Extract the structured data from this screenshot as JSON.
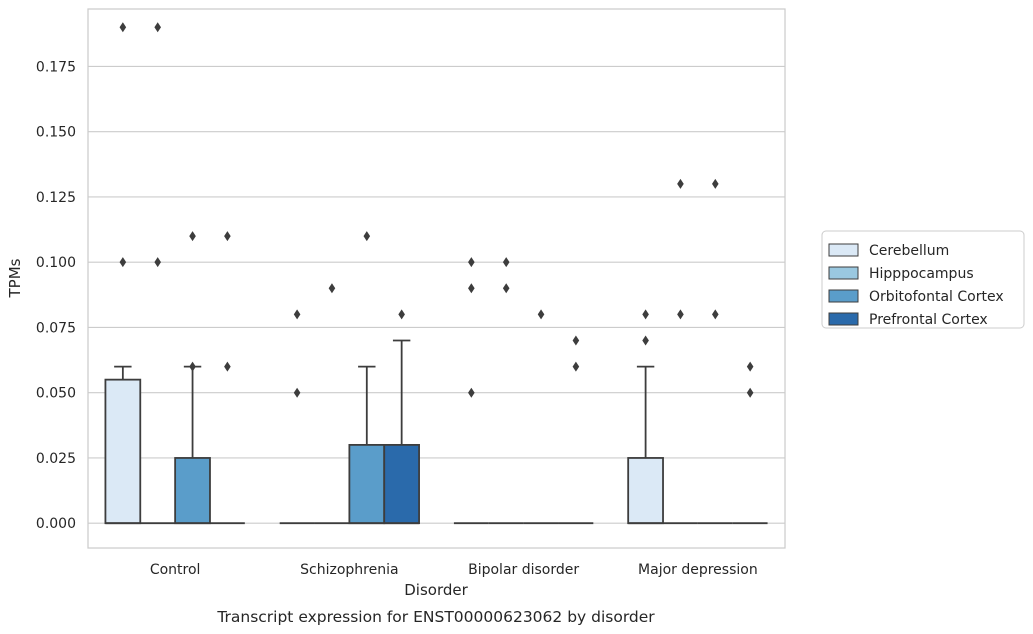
{
  "chart_data": {
    "type": "boxplot",
    "title": "Transcript expression for ENST00000623062 by disorder",
    "xlabel": "Disorder",
    "ylabel": "TPMs",
    "ylim": [
      -0.0095,
      0.197
    ],
    "yticks": [
      "0.000",
      "0.025",
      "0.050",
      "0.075",
      "0.100",
      "0.125",
      "0.150",
      "0.175"
    ],
    "grid": true,
    "legend_position": "right",
    "categories": [
      "Control",
      "Schizophrenia",
      "Bipolar disorder",
      "Major depression"
    ],
    "series": [
      {
        "name": "Cerebellum",
        "color": "#dbe9f6",
        "boxes": [
          {
            "min": 0,
            "q1": 0,
            "median": 0,
            "q3": 0.055,
            "max": 0.06,
            "outliers": [
              0.19,
              0.1
            ]
          },
          {
            "min": 0,
            "q1": 0,
            "median": 0,
            "q3": 0,
            "max": 0,
            "outliers": [
              0.08,
              0.05
            ]
          },
          {
            "min": 0,
            "q1": 0,
            "median": 0,
            "q3": 0,
            "max": 0,
            "outliers": [
              0.1,
              0.09,
              0.05
            ]
          },
          {
            "min": 0,
            "q1": 0,
            "median": 0,
            "q3": 0.025,
            "max": 0.06,
            "outliers": [
              0.08,
              0.07
            ]
          }
        ]
      },
      {
        "name": "Hipppocampus",
        "color": "#9ac8e0",
        "boxes": [
          {
            "min": 0,
            "q1": 0,
            "median": 0,
            "q3": 0,
            "max": 0,
            "outliers": [
              0.19,
              0.1
            ]
          },
          {
            "min": 0,
            "q1": 0,
            "median": 0,
            "q3": 0,
            "max": 0,
            "outliers": [
              0.09
            ]
          },
          {
            "min": 0,
            "q1": 0,
            "median": 0,
            "q3": 0,
            "max": 0,
            "outliers": [
              0.1,
              0.09
            ]
          },
          {
            "min": 0,
            "q1": 0,
            "median": 0,
            "q3": 0,
            "max": 0,
            "outliers": [
              0.13,
              0.08
            ]
          }
        ]
      },
      {
        "name": "Orbitofontal Cortex",
        "color": "#5a9dca",
        "boxes": [
          {
            "min": 0,
            "q1": 0,
            "median": 0,
            "q3": 0.025,
            "max": 0.06,
            "outliers": [
              0.11,
              0.06
            ]
          },
          {
            "min": 0,
            "q1": 0,
            "median": 0,
            "q3": 0.03,
            "max": 0.06,
            "outliers": [
              0.11
            ]
          },
          {
            "min": 0,
            "q1": 0,
            "median": 0,
            "q3": 0,
            "max": 0,
            "outliers": [
              0.08
            ]
          },
          {
            "min": 0,
            "q1": 0,
            "median": 0,
            "q3": 0,
            "max": 0,
            "outliers": [
              0.13,
              0.08
            ]
          }
        ]
      },
      {
        "name": "Prefrontal Cortex",
        "color": "#2a6aab",
        "boxes": [
          {
            "min": 0,
            "q1": 0,
            "median": 0,
            "q3": 0,
            "max": 0,
            "outliers": [
              0.11,
              0.06
            ]
          },
          {
            "min": 0,
            "q1": 0,
            "median": 0,
            "q3": 0.03,
            "max": 0.07,
            "outliers": [
              0.08
            ]
          },
          {
            "min": 0,
            "q1": 0,
            "median": 0,
            "q3": 0,
            "max": 0,
            "outliers": [
              0.07,
              0.06
            ]
          },
          {
            "min": 0,
            "q1": 0,
            "median": 0,
            "q3": 0,
            "max": 0,
            "outliers": [
              0.06,
              0.05
            ]
          }
        ]
      }
    ]
  }
}
